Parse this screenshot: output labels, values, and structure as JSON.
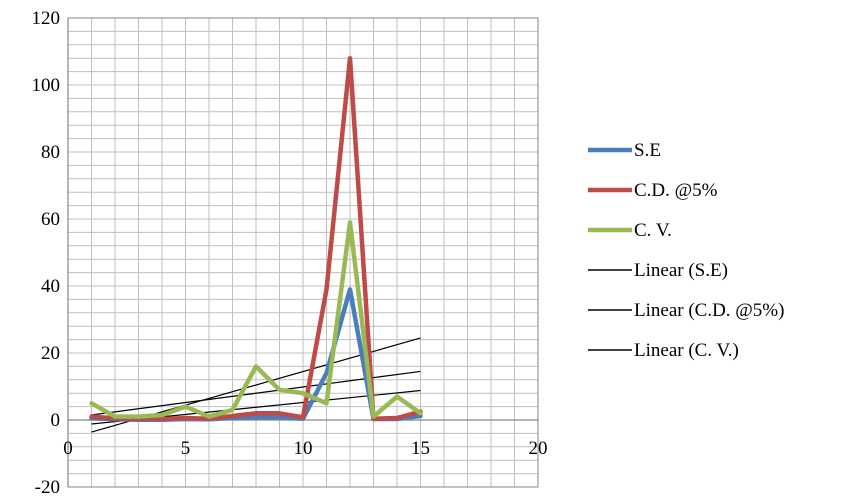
{
  "chart_data": {
    "type": "line",
    "title": "",
    "xlabel": "",
    "ylabel": "",
    "xlim": [
      0,
      20
    ],
    "ylim": [
      -20,
      120
    ],
    "x_ticks": [
      0,
      5,
      10,
      15,
      20
    ],
    "y_ticks": [
      -20,
      0,
      20,
      40,
      60,
      80,
      100,
      120
    ],
    "x_tick_labels": [
      "0",
      "5",
      "10",
      "15",
      "20"
    ],
    "y_tick_labels": [
      "-20",
      "0",
      "20",
      "40",
      "60",
      "80",
      "100",
      "120"
    ],
    "grid": true,
    "legend_position": "right",
    "x": [
      1,
      2,
      3,
      4,
      5,
      6,
      7,
      8,
      9,
      10,
      11,
      12,
      13,
      14,
      15
    ],
    "series": [
      {
        "name": "S.E",
        "color": "#4a7ebb",
        "values": [
          0.5,
          0.2,
          0.1,
          0.1,
          0.3,
          0.2,
          0.6,
          0.8,
          0.8,
          0.4,
          14,
          39,
          0.3,
          0.3,
          1.2
        ]
      },
      {
        "name": "C.D. @5%",
        "color": "#be4b48",
        "values": [
          1,
          0.5,
          0.3,
          0.3,
          0.6,
          0.4,
          1.2,
          2,
          2,
          0.8,
          39,
          108,
          0.4,
          0.6,
          2.5
        ]
      },
      {
        "name": "C. V.",
        "color": "#98b954",
        "values": [
          5,
          1,
          1,
          1.5,
          4,
          1,
          3,
          16,
          9,
          8,
          5,
          59,
          1,
          7,
          2
        ]
      }
    ],
    "trendlines": [
      {
        "name": "Linear (S.E)",
        "color": "#000000",
        "values_at_x1_x15": [
          -1.2,
          8.8
        ]
      },
      {
        "name": "Linear (C.D. @5%)",
        "color": "#000000",
        "values_at_x1_x15": [
          -3.6,
          24.5
        ]
      },
      {
        "name": "Linear (C. V.)",
        "color": "#000000",
        "values_at_x1_x15": [
          1.5,
          14.5
        ]
      }
    ]
  }
}
